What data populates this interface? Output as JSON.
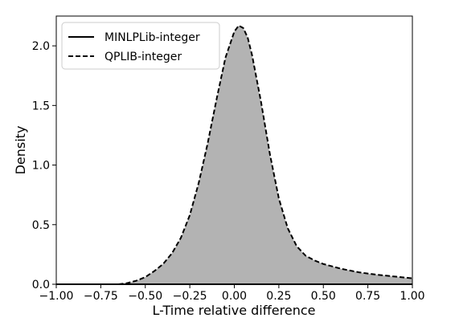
{
  "chart_data": {
    "type": "area",
    "xlabel": "L-Time relative difference",
    "ylabel": "Density",
    "xlim": [
      -1.0,
      1.0
    ],
    "ylim": [
      0.0,
      2.25
    ],
    "x_ticks": [
      -1.0,
      -0.75,
      -0.5,
      -0.25,
      0.0,
      0.25,
      0.5,
      0.75,
      1.0
    ],
    "x_tick_labels": [
      "−1.00",
      "−0.75",
      "−0.50",
      "−0.25",
      "0.00",
      "0.25",
      "0.50",
      "0.75",
      "1.00"
    ],
    "y_ticks": [
      0.0,
      0.5,
      1.0,
      1.5,
      2.0
    ],
    "y_tick_labels": [
      "0.0",
      "0.5",
      "1.0",
      "1.5",
      "2.0"
    ],
    "legend_position": "top-left",
    "fill_color": "#b3b3b3",
    "series": [
      {
        "name": "MINLPLib-integer",
        "line_style": "solid",
        "x": [
          -1.0,
          1.0
        ],
        "y": [
          0.0,
          0.0
        ]
      },
      {
        "name": "QPLIB-integer",
        "line_style": "dashed",
        "x": [
          -0.65,
          -0.6,
          -0.55,
          -0.5,
          -0.45,
          -0.4,
          -0.35,
          -0.3,
          -0.25,
          -0.2,
          -0.15,
          -0.1,
          -0.05,
          0.0,
          0.025,
          0.05,
          0.075,
          0.1,
          0.15,
          0.2,
          0.25,
          0.3,
          0.35,
          0.4,
          0.45,
          0.5,
          0.6,
          0.7,
          0.8,
          0.9,
          1.0
        ],
        "y": [
          0.0,
          0.01,
          0.03,
          0.06,
          0.11,
          0.17,
          0.26,
          0.39,
          0.58,
          0.85,
          1.18,
          1.55,
          1.9,
          2.12,
          2.17,
          2.15,
          2.07,
          1.92,
          1.53,
          1.09,
          0.72,
          0.47,
          0.32,
          0.24,
          0.2,
          0.17,
          0.13,
          0.1,
          0.08,
          0.065,
          0.05
        ]
      }
    ]
  }
}
